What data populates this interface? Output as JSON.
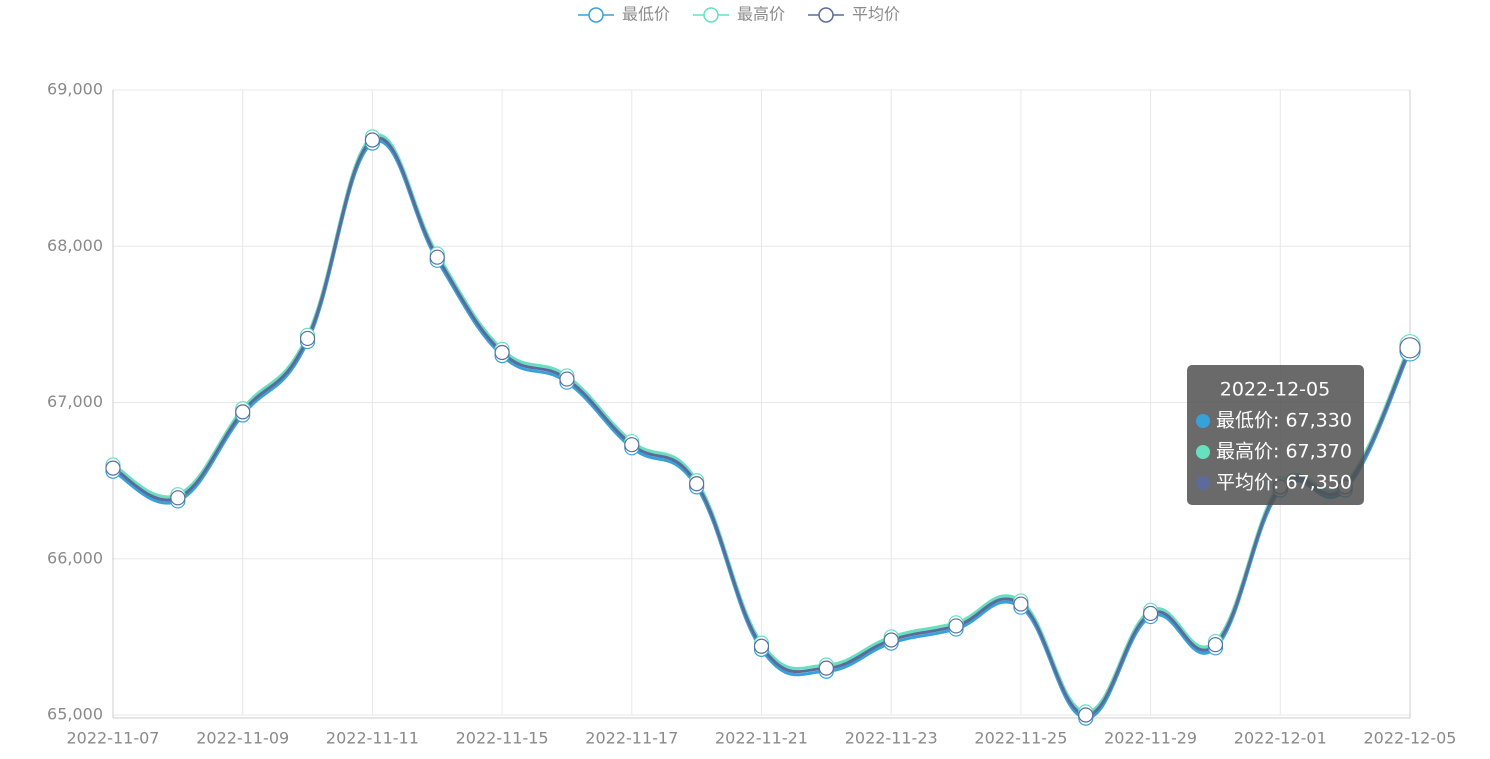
{
  "chart_data": {
    "type": "line",
    "categories": [
      "2022-11-07",
      null,
      "2022-11-09",
      null,
      "2022-11-11",
      null,
      "2022-11-15",
      null,
      "2022-11-17",
      null,
      "2022-11-21",
      null,
      "2022-11-23",
      null,
      "2022-11-25",
      null,
      "2022-11-29",
      null,
      "2022-12-01",
      null,
      "2022-12-05"
    ],
    "series": [
      {
        "name": "最低价",
        "color": "#37a2da",
        "values": [
          66560,
          66370,
          66920,
          67390,
          68660,
          67910,
          67300,
          67130,
          66710,
          66460,
          65420,
          65280,
          65460,
          65550,
          65690,
          64980,
          65630,
          65430,
          66440,
          66440,
          67330
        ]
      },
      {
        "name": "最高价",
        "color": "#67e0c0",
        "values": [
          66600,
          66410,
          66960,
          67430,
          68700,
          67950,
          67340,
          67170,
          66750,
          66500,
          65460,
          65320,
          65500,
          65590,
          65730,
          65020,
          65670,
          65470,
          66480,
          66480,
          67370
        ]
      },
      {
        "name": "平均价",
        "color": "#5b6b9a",
        "values": [
          66580,
          66390,
          66940,
          67410,
          68680,
          67930,
          67320,
          67150,
          66730,
          66480,
          65440,
          65300,
          65480,
          65570,
          65710,
          65000,
          65650,
          65450,
          66460,
          66460,
          67350
        ]
      }
    ],
    "ylim": [
      65000,
      69000
    ],
    "yticks": [
      {
        "value": 65000,
        "label": "65,000"
      },
      {
        "value": 66000,
        "label": "66,000"
      },
      {
        "value": 67000,
        "label": "67,000"
      },
      {
        "value": 68000,
        "label": "68,000"
      },
      {
        "value": 69000,
        "label": "69,000"
      }
    ],
    "grid": true,
    "legend": "top",
    "tooltip": {
      "title": "2022-12-05",
      "items": [
        "最低价: 67,330",
        "最高价: 67,370",
        "平均价: 67,350"
      ]
    }
  }
}
